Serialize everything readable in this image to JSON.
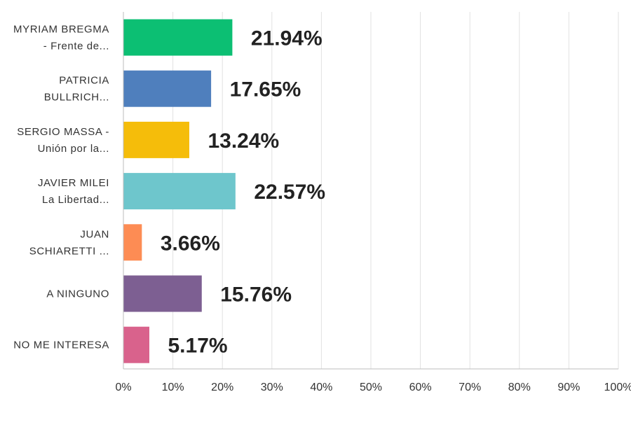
{
  "chart_data": {
    "type": "bar",
    "orientation": "horizontal",
    "categories": [
      [
        "MYRIAM BREGMA",
        "- Frente de..."
      ],
      [
        "PATRICIA",
        "BULLRICH..."
      ],
      [
        "SERGIO MASSA -",
        "Unión por la..."
      ],
      [
        "JAVIER MILEI",
        "La Libertad..."
      ],
      [
        "JUAN",
        "SCHIARETTI ..."
      ],
      [
        "A NINGUNO"
      ],
      [
        "NO ME INTERESA"
      ]
    ],
    "values": [
      21.94,
      17.65,
      13.24,
      22.57,
      3.66,
      15.76,
      5.17
    ],
    "value_labels": [
      "21.94%",
      "17.65%",
      "13.24%",
      "22.57%",
      "3.66%",
      "15.76%",
      "5.17%"
    ],
    "colors": [
      "#0cbf73",
      "#4f7fbd",
      "#f5bd0a",
      "#6ec6cc",
      "#fd8c54",
      "#7d5f92",
      "#d9628c"
    ],
    "xlim": [
      0,
      100
    ],
    "xticks": [
      "0%",
      "10%",
      "20%",
      "30%",
      "40%",
      "50%",
      "60%",
      "70%",
      "80%",
      "90%",
      "100%"
    ],
    "grid": true,
    "legend": "none"
  }
}
